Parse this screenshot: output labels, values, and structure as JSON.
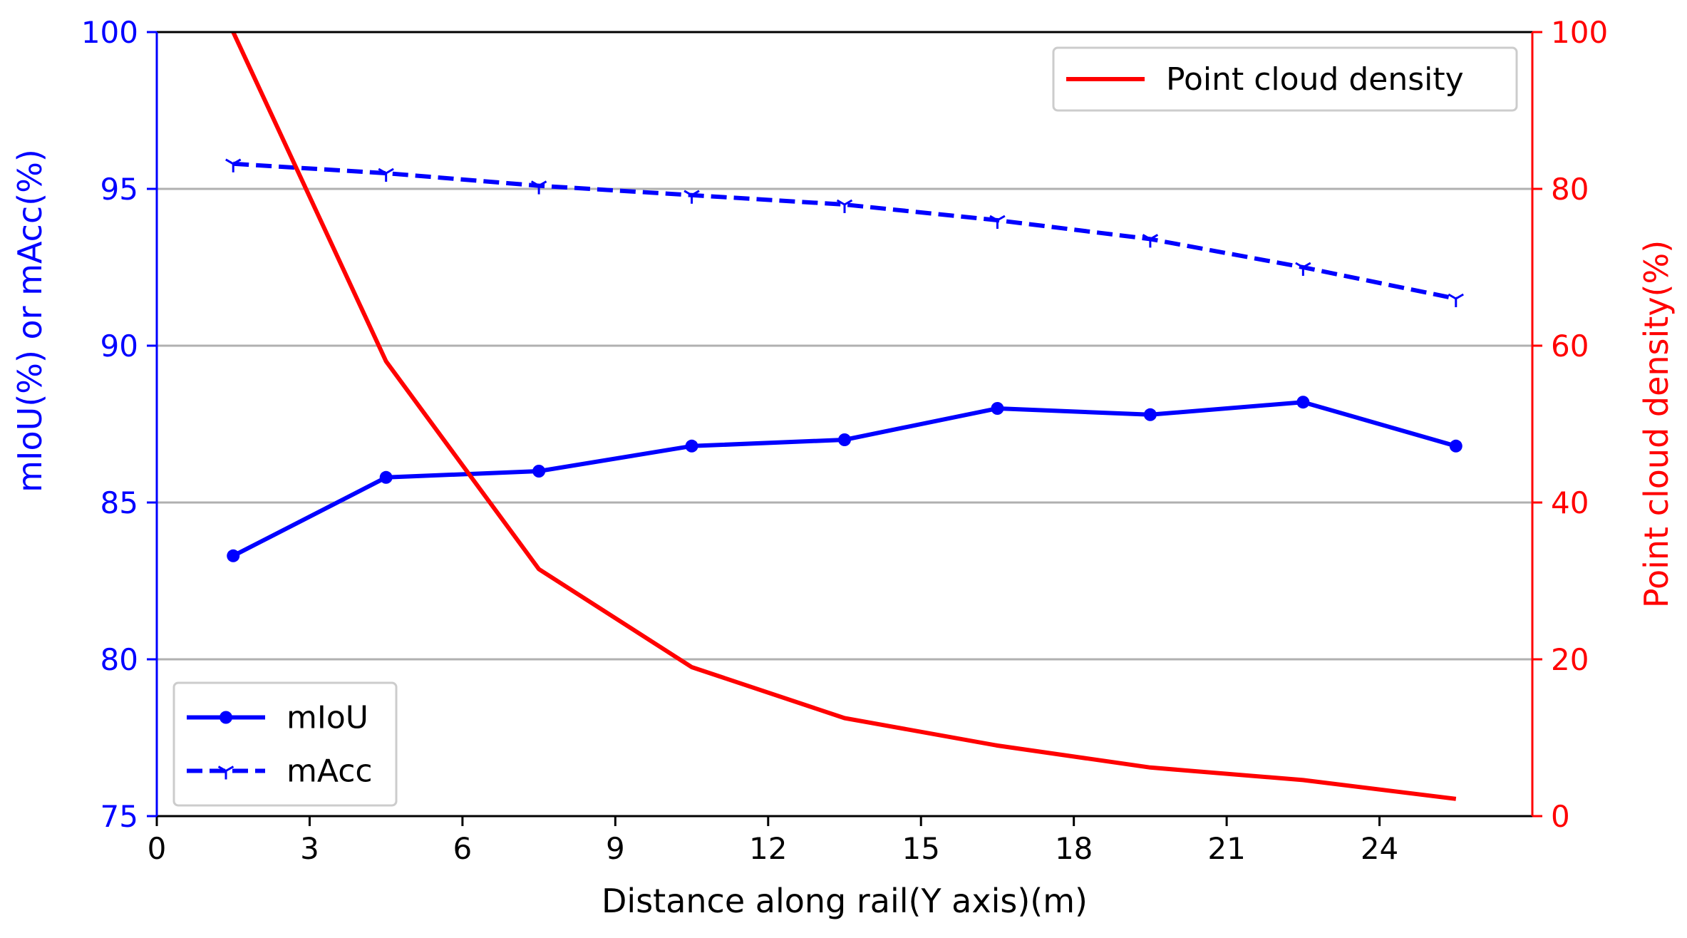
{
  "chart_data": {
    "type": "line",
    "x": [
      1.5,
      4.5,
      7.5,
      10.5,
      13.5,
      16.5,
      19.5,
      22.5,
      25.5
    ],
    "xlabel": "Distance along rail(Y axis)(m)",
    "xlim": [
      0,
      27
    ],
    "xticks": [
      "0",
      "3",
      "6",
      "9",
      "12",
      "15",
      "18",
      "21",
      "24"
    ],
    "ylabel_left": "mIoU(%) or mAcc(%)",
    "ylim_left": [
      75,
      100
    ],
    "yticks_left": [
      "75",
      "80",
      "85",
      "90",
      "95",
      "100"
    ],
    "ylabel_right": "Point cloud density(%)",
    "ylim_right": [
      0,
      100
    ],
    "yticks_right": [
      "0",
      "20",
      "40",
      "60",
      "80",
      "100"
    ],
    "grid": "horizontal",
    "series": [
      {
        "name": "mIoU",
        "axis": "left",
        "style": "solid",
        "marker": "circle",
        "color": "#0000ff",
        "values": [
          83.3,
          85.8,
          86.0,
          86.8,
          87.0,
          88.0,
          87.8,
          88.2,
          86.8
        ]
      },
      {
        "name": "mAcc",
        "axis": "left",
        "style": "dashed",
        "marker": "tri_down",
        "color": "#0000ff",
        "values": [
          95.8,
          95.5,
          95.1,
          94.8,
          94.5,
          94.0,
          93.4,
          92.5,
          91.5
        ]
      },
      {
        "name": "Point cloud density",
        "axis": "right",
        "style": "solid",
        "marker": "none",
        "color": "#ff0000",
        "values": [
          100.0,
          58.0,
          31.5,
          19.0,
          12.5,
          9.0,
          6.2,
          4.6,
          2.2
        ]
      }
    ],
    "legend_left": {
      "position": "lower-left",
      "entries": [
        "mIoU",
        "mAcc"
      ]
    },
    "legend_right": {
      "position": "upper-right",
      "entries": [
        "Point cloud density"
      ]
    }
  }
}
